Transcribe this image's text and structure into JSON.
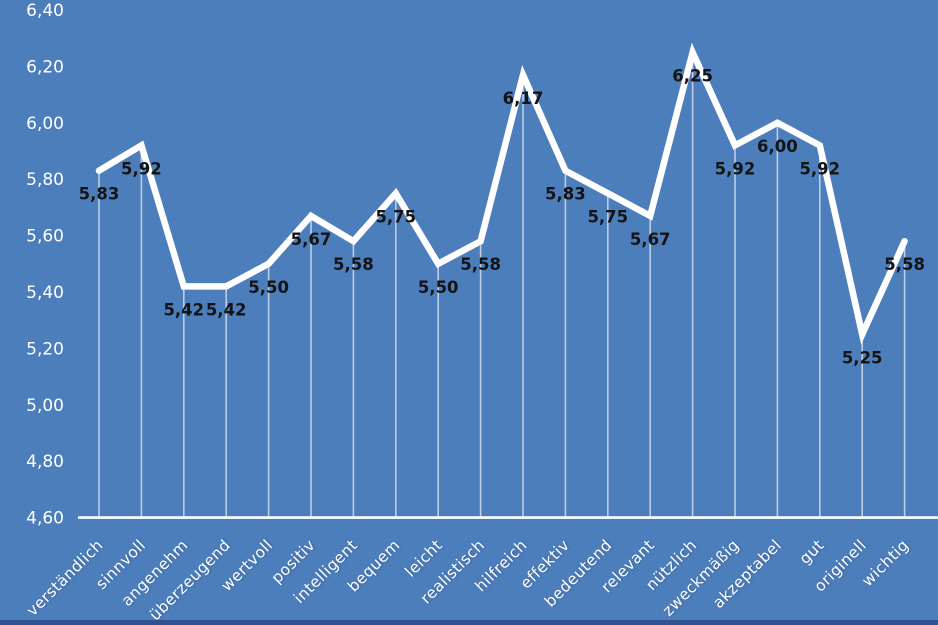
{
  "chart_data": {
    "type": "line",
    "title": "",
    "xlabel": "",
    "ylabel": "",
    "ylim": [
      4.6,
      6.4
    ],
    "ytick_labels": [
      "6,40",
      "6,20",
      "6,00",
      "5,80",
      "5,60",
      "5,40",
      "5,20",
      "5,00",
      "4,80",
      "4,60"
    ],
    "grid": false,
    "legend": "none",
    "decimal_separator": ",",
    "categories": [
      "verständlich",
      "sinnvoll",
      "angenehm",
      "überzeugend",
      "wertvoll",
      "positiv",
      "intelligent",
      "bequem",
      "leicht",
      "realistisch",
      "hilfreich",
      "effektiv",
      "bedeutend",
      "relevant",
      "nützlich",
      "zweckmäßig",
      "akzeptabel",
      "gut",
      "originell",
      "wichtig"
    ],
    "values": [
      5.83,
      5.92,
      5.42,
      5.42,
      5.5,
      5.67,
      5.58,
      5.75,
      5.5,
      5.58,
      6.17,
      5.83,
      5.75,
      5.67,
      6.25,
      5.92,
      6.0,
      5.92,
      5.25,
      5.58
    ],
    "value_labels": [
      "5,83",
      "5,92",
      "5,42",
      "5,42",
      "5,50",
      "5,67",
      "5,58",
      "5,75",
      "5,50",
      "5,58",
      "6,17",
      "5,83",
      "5,75",
      "5,67",
      "6,25",
      "5,92",
      "6,00",
      "5,92",
      "5,25",
      "5,58"
    ],
    "colors": {
      "background": "#4d7ebc",
      "line": "#ffffff",
      "dropline": "#ffffff",
      "dropline_opacity": 0.62,
      "axis_line": "#ffffff",
      "data_label": "#141414",
      "tick_label": "#ffffff",
      "category_label": "#ffffff",
      "bottom_strip": "#2f5390"
    }
  }
}
